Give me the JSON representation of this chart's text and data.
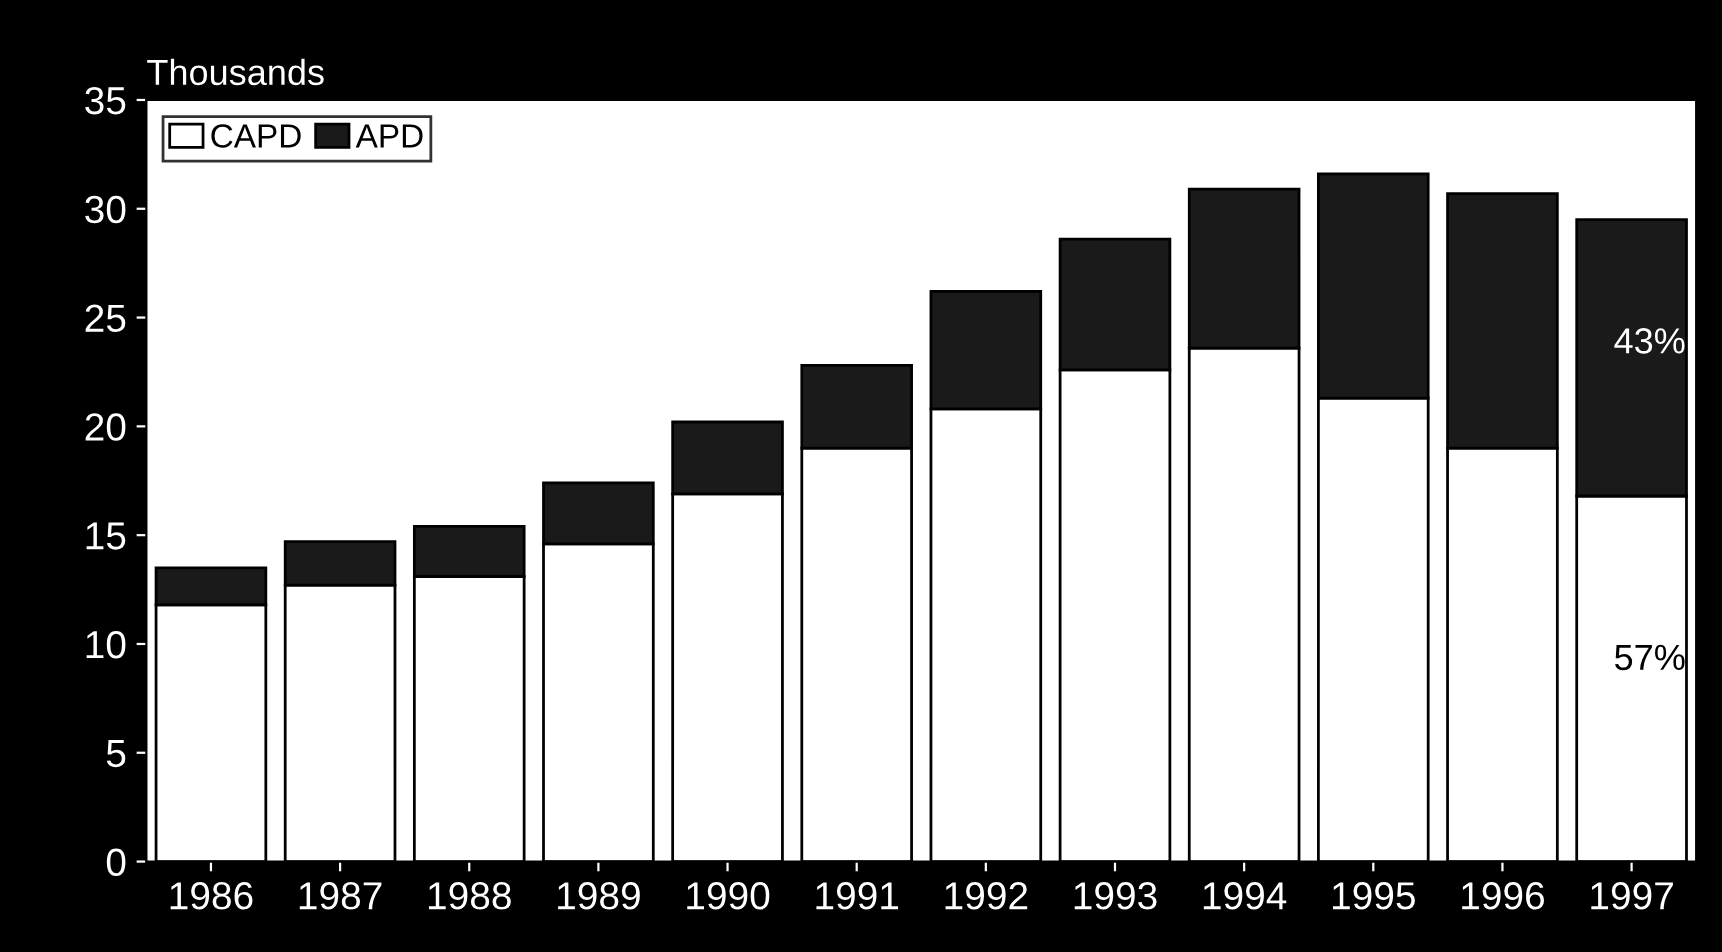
{
  "chart_data": {
    "type": "bar",
    "ylabel": "Thousands",
    "stacked": true,
    "categories": [
      "1986",
      "1987",
      "1988",
      "1989",
      "1990",
      "1991",
      "1992",
      "1993",
      "1994",
      "1995",
      "1996",
      "1997"
    ],
    "series": [
      {
        "name": "CAPD",
        "color": "#ffffff",
        "values": [
          11.8,
          12.7,
          13.1,
          14.6,
          16.9,
          19.0,
          20.8,
          22.6,
          23.6,
          21.3,
          19.0,
          16.8
        ]
      },
      {
        "name": "APD",
        "color": "#1a1a1a",
        "values": [
          1.7,
          2.0,
          2.3,
          2.8,
          3.3,
          3.8,
          5.4,
          6.0,
          7.3,
          10.3,
          11.7,
          12.7
        ]
      }
    ],
    "annotations": [
      "43%",
      "57%"
    ],
    "ylim": [
      0,
      35
    ],
    "yticks": [
      0,
      5,
      10,
      15,
      20,
      25,
      30,
      35
    ],
    "grid": false,
    "legend": "top left"
  }
}
